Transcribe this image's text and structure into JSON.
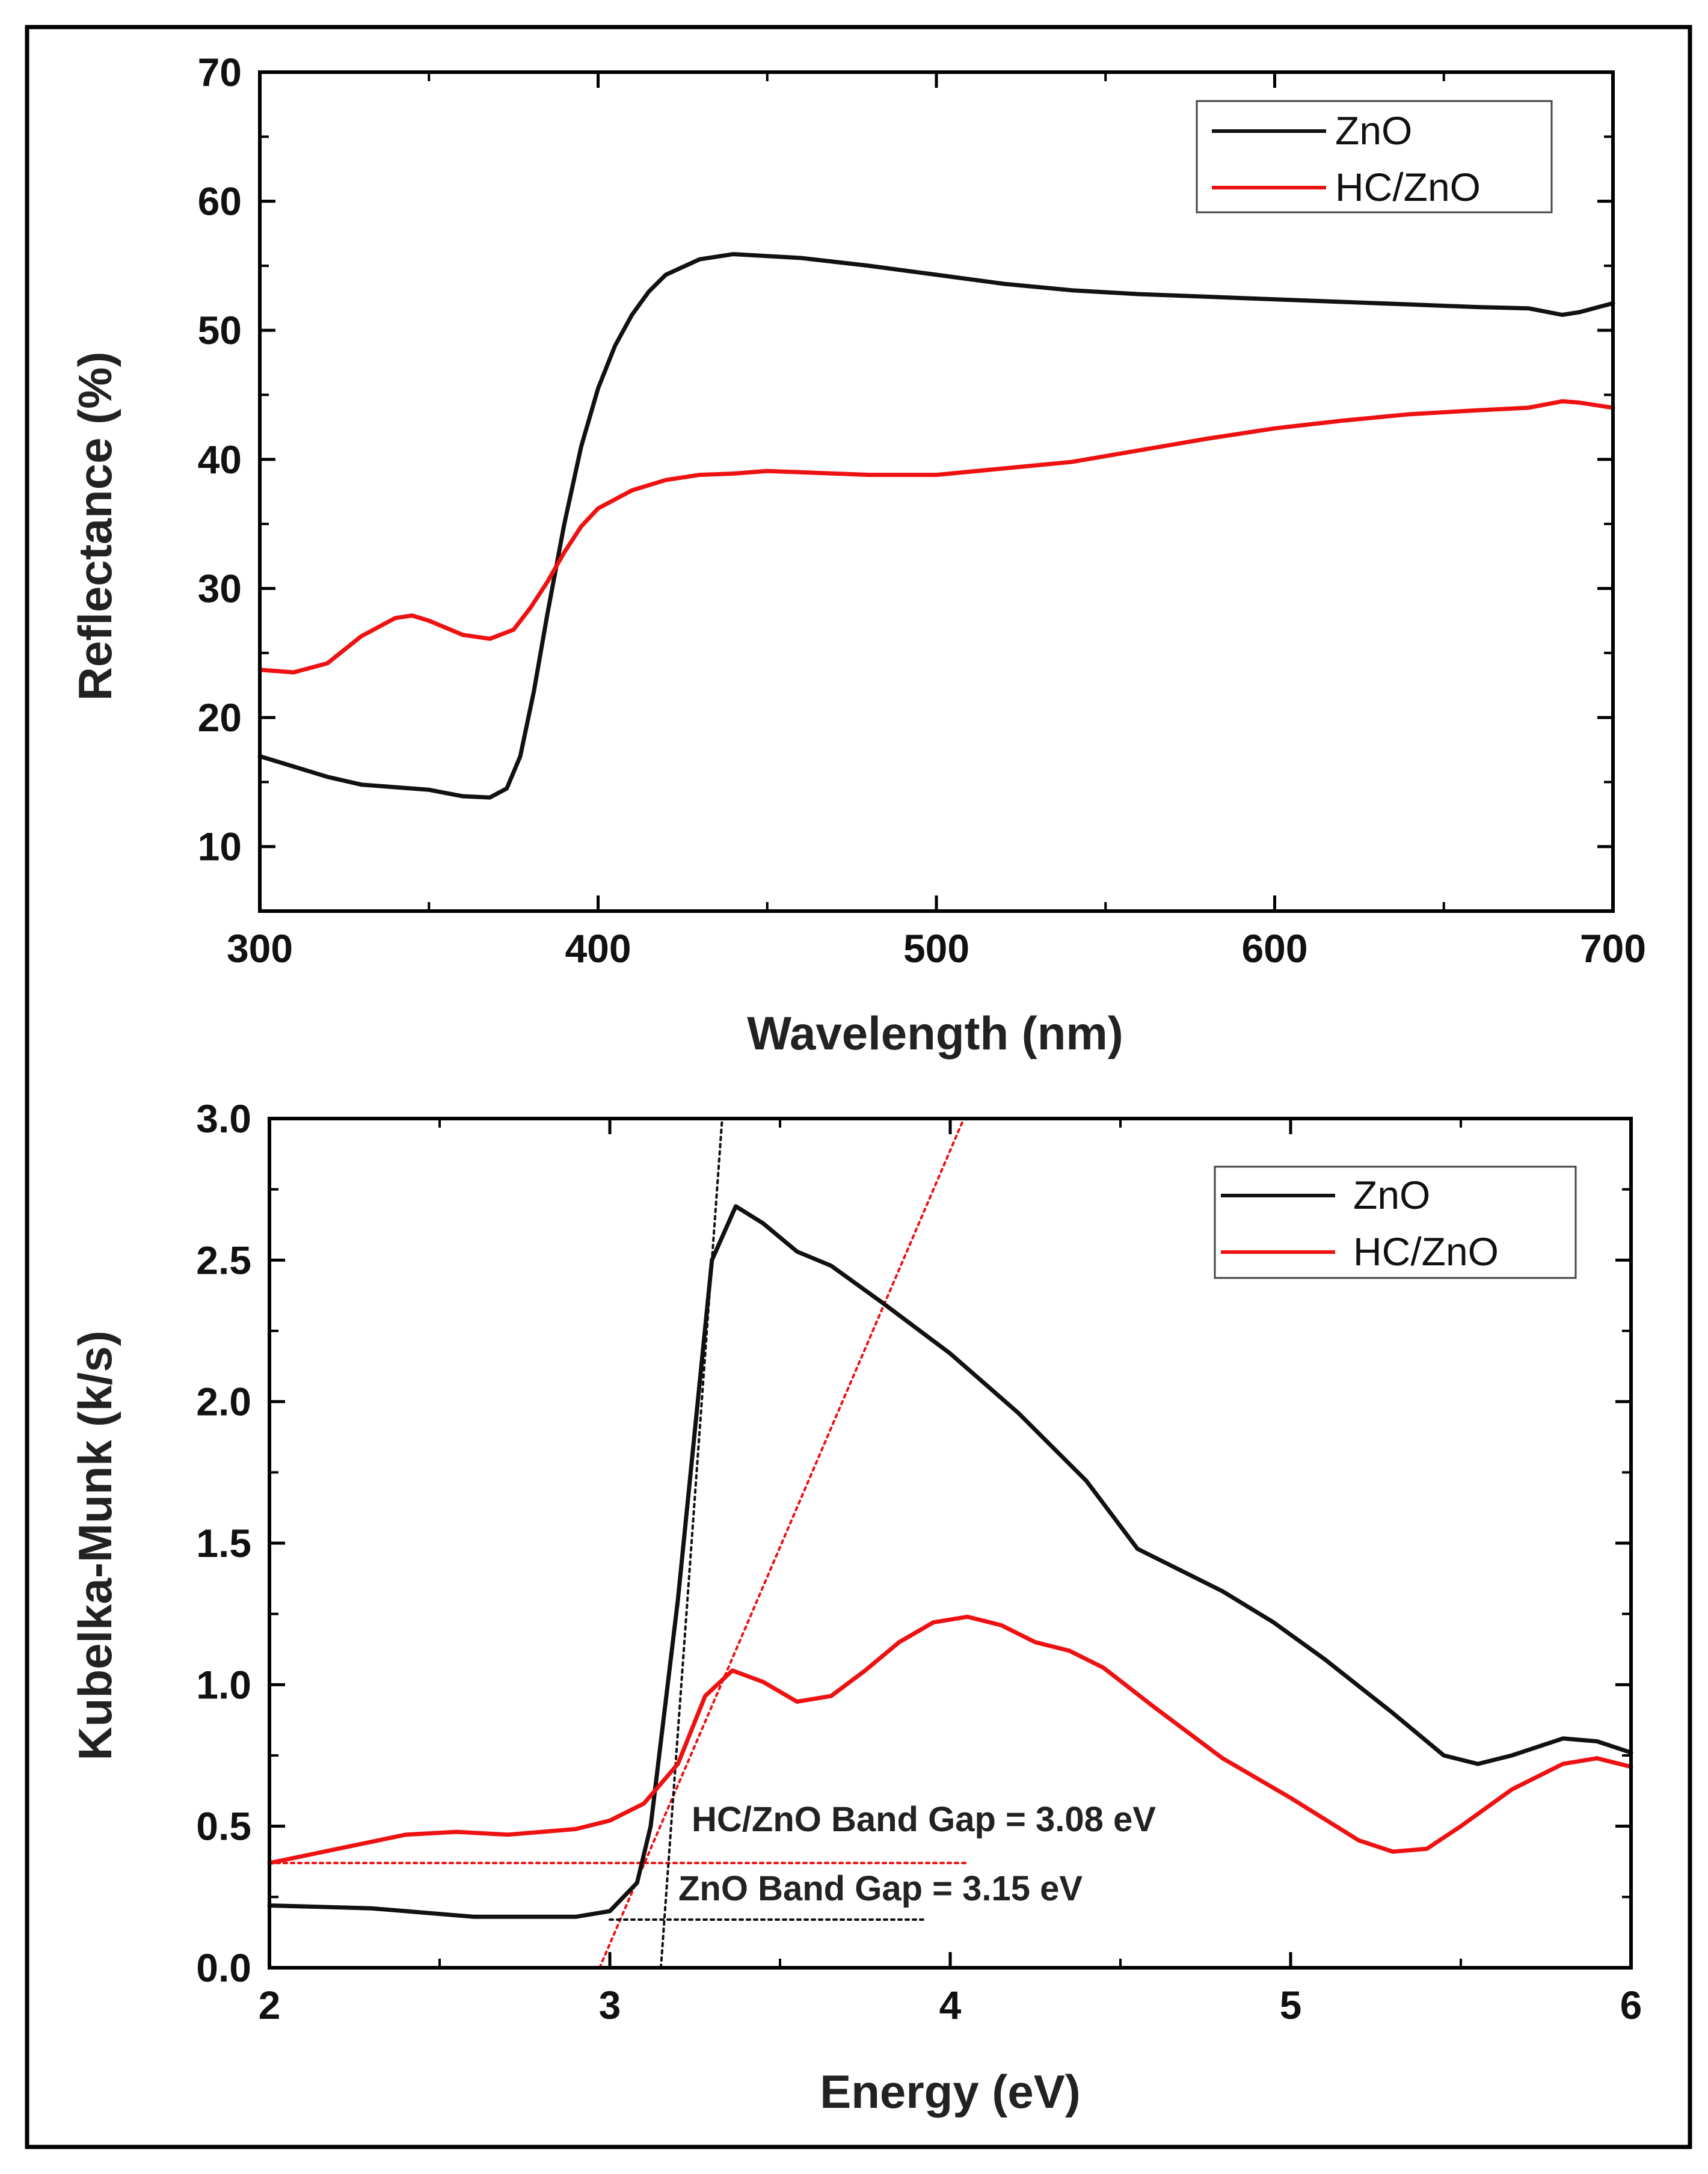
{
  "chart_data": [
    {
      "type": "line",
      "id": "top",
      "xlabel": "Wavelength (nm)",
      "ylabel": "Reflectance (%)",
      "xlim": [
        300,
        700
      ],
      "ylim": [
        5,
        70
      ],
      "xticks": [
        300,
        400,
        500,
        600,
        700
      ],
      "yticks": [
        10,
        20,
        30,
        40,
        50,
        60,
        70
      ],
      "xminor": [
        350,
        450,
        550,
        650
      ],
      "yminor": [
        15,
        25,
        35,
        45,
        55,
        65
      ],
      "legend": "top-right",
      "series": [
        {
          "name": "ZnO",
          "color": "#111111",
          "points": [
            [
              300,
              17
            ],
            [
              310,
              16.2
            ],
            [
              320,
              15.4
            ],
            [
              330,
              14.8
            ],
            [
              340,
              14.6
            ],
            [
              350,
              14.4
            ],
            [
              360,
              13.9
            ],
            [
              368,
              13.8
            ],
            [
              373,
              14.5
            ],
            [
              377,
              17
            ],
            [
              381,
              22
            ],
            [
              385,
              28
            ],
            [
              390,
              35
            ],
            [
              395,
              41
            ],
            [
              400,
              45.5
            ],
            [
              405,
              48.8
            ],
            [
              410,
              51.2
            ],
            [
              415,
              53
            ],
            [
              420,
              54.3
            ],
            [
              430,
              55.5
            ],
            [
              440,
              55.9
            ],
            [
              460,
              55.6
            ],
            [
              480,
              55
            ],
            [
              500,
              54.3
            ],
            [
              520,
              53.6
            ],
            [
              540,
              53.1
            ],
            [
              560,
              52.8
            ],
            [
              580,
              52.6
            ],
            [
              600,
              52.4
            ],
            [
              620,
              52.2
            ],
            [
              640,
              52
            ],
            [
              660,
              51.8
            ],
            [
              675,
              51.7
            ],
            [
              685,
              51.2
            ],
            [
              690,
              51.4
            ],
            [
              700,
              52.1
            ]
          ]
        },
        {
          "name": "HC/ZnO",
          "color": "#ee1111",
          "points": [
            [
              300,
              23.7
            ],
            [
              310,
              23.5
            ],
            [
              320,
              24.2
            ],
            [
              330,
              26.3
            ],
            [
              340,
              27.7
            ],
            [
              345,
              27.9
            ],
            [
              350,
              27.5
            ],
            [
              360,
              26.4
            ],
            [
              368,
              26.1
            ],
            [
              375,
              26.8
            ],
            [
              380,
              28.5
            ],
            [
              385,
              30.5
            ],
            [
              390,
              32.8
            ],
            [
              395,
              34.8
            ],
            [
              400,
              36.2
            ],
            [
              410,
              37.6
            ],
            [
              420,
              38.4
            ],
            [
              430,
              38.8
            ],
            [
              440,
              38.9
            ],
            [
              450,
              39.1
            ],
            [
              460,
              39
            ],
            [
              480,
              38.8
            ],
            [
              500,
              38.8
            ],
            [
              520,
              39.3
            ],
            [
              540,
              39.8
            ],
            [
              560,
              40.7
            ],
            [
              580,
              41.6
            ],
            [
              600,
              42.4
            ],
            [
              620,
              43
            ],
            [
              640,
              43.5
            ],
            [
              660,
              43.8
            ],
            [
              675,
              44
            ],
            [
              685,
              44.5
            ],
            [
              690,
              44.4
            ],
            [
              700,
              44
            ]
          ]
        }
      ]
    },
    {
      "type": "line",
      "id": "bottom",
      "xlabel": "Energy (eV)",
      "ylabel": "Kubelka-Munk (k/s)",
      "xlim": [
        2,
        6
      ],
      "ylim": [
        0,
        3
      ],
      "xticks": [
        2,
        3,
        4,
        5,
        6
      ],
      "yticks": [
        0.0,
        0.5,
        1.0,
        1.5,
        2.0,
        2.5,
        3.0
      ],
      "xtick_labels": [
        "2",
        "3",
        "4",
        "5",
        "6"
      ],
      "ytick_labels": [
        "0.0",
        "0.5",
        "1.0",
        "1.5",
        "2.0",
        "2.5",
        "3.0"
      ],
      "xminor": [
        2.5,
        3.5,
        4.5,
        5.5
      ],
      "yminor": [
        0.25,
        0.75,
        1.25,
        1.75,
        2.25,
        2.75
      ],
      "legend": "top-right",
      "series": [
        {
          "name": "ZnO",
          "color": "#111111",
          "points": [
            [
              2,
              0.22
            ],
            [
              2.3,
              0.21
            ],
            [
              2.6,
              0.18
            ],
            [
              2.9,
              0.18
            ],
            [
              3.0,
              0.2
            ],
            [
              3.08,
              0.3
            ],
            [
              3.12,
              0.5
            ],
            [
              3.15,
              0.8
            ],
            [
              3.2,
              1.3
            ],
            [
              3.25,
              1.9
            ],
            [
              3.3,
              2.5
            ],
            [
              3.37,
              2.69
            ],
            [
              3.45,
              2.63
            ],
            [
              3.55,
              2.53
            ],
            [
              3.65,
              2.48
            ],
            [
              3.8,
              2.35
            ],
            [
              4.0,
              2.17
            ],
            [
              4.2,
              1.96
            ],
            [
              4.4,
              1.72
            ],
            [
              4.55,
              1.48
            ],
            [
              4.7,
              1.39
            ],
            [
              4.8,
              1.33
            ],
            [
              4.95,
              1.22
            ],
            [
              5.1,
              1.09
            ],
            [
              5.3,
              0.9
            ],
            [
              5.45,
              0.75
            ],
            [
              5.55,
              0.72
            ],
            [
              5.65,
              0.75
            ],
            [
              5.8,
              0.81
            ],
            [
              5.9,
              0.8
            ],
            [
              6.0,
              0.76
            ]
          ]
        },
        {
          "name": "HC/ZnO",
          "color": "#ee1111",
          "points": [
            [
              2,
              0.37
            ],
            [
              2.2,
              0.42
            ],
            [
              2.4,
              0.47
            ],
            [
              2.55,
              0.48
            ],
            [
              2.7,
              0.47
            ],
            [
              2.9,
              0.49
            ],
            [
              3.0,
              0.52
            ],
            [
              3.1,
              0.58
            ],
            [
              3.2,
              0.72
            ],
            [
              3.28,
              0.96
            ],
            [
              3.36,
              1.05
            ],
            [
              3.45,
              1.01
            ],
            [
              3.55,
              0.94
            ],
            [
              3.65,
              0.96
            ],
            [
              3.75,
              1.05
            ],
            [
              3.85,
              1.15
            ],
            [
              3.95,
              1.22
            ],
            [
              4.05,
              1.24
            ],
            [
              4.15,
              1.21
            ],
            [
              4.25,
              1.15
            ],
            [
              4.35,
              1.12
            ],
            [
              4.45,
              1.06
            ],
            [
              4.6,
              0.92
            ],
            [
              4.8,
              0.74
            ],
            [
              5.0,
              0.6
            ],
            [
              5.2,
              0.45
            ],
            [
              5.3,
              0.41
            ],
            [
              5.4,
              0.42
            ],
            [
              5.5,
              0.5
            ],
            [
              5.65,
              0.63
            ],
            [
              5.8,
              0.72
            ],
            [
              5.9,
              0.74
            ],
            [
              6.0,
              0.71
            ]
          ]
        }
      ],
      "guides": [
        {
          "style": "dotted",
          "color": "#ee1111",
          "from": [
            2.97,
            0.0
          ],
          "to": [
            4.04,
            3.0
          ]
        },
        {
          "style": "dotted",
          "color": "#ee1111",
          "from": [
            2.0,
            0.37
          ],
          "to": [
            4.05,
            0.37
          ]
        },
        {
          "style": "dotted",
          "color": "#111111",
          "from": [
            3.15,
            0.0
          ],
          "to": [
            3.33,
            3.0
          ]
        },
        {
          "style": "dotted",
          "color": "#111111",
          "from": [
            3.0,
            0.17
          ],
          "to": [
            3.92,
            0.17
          ]
        }
      ],
      "annotations": [
        {
          "text": "HC/ZnO Band Gap = 3.08 eV",
          "x": 3.26,
          "y": 0.52
        },
        {
          "text": "ZnO Band Gap = 3.15 eV",
          "x": 3.22,
          "y": 0.25
        }
      ]
    }
  ]
}
